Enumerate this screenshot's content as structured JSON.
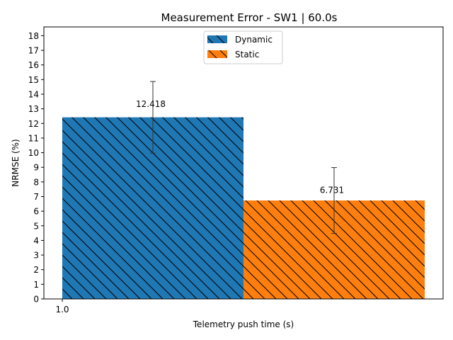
{
  "chart_data": {
    "type": "bar",
    "title": "Measurement Error - SW1 | 60.0s",
    "xlabel": "Telemetry push time (s)",
    "ylabel": "NRMSE (%)",
    "categories": [
      "1.0"
    ],
    "ylim": [
      0,
      18.6
    ],
    "yticks": [
      0,
      1,
      2,
      3,
      4,
      5,
      6,
      7,
      8,
      9,
      10,
      11,
      12,
      13,
      14,
      15,
      16,
      17,
      18
    ],
    "grid": false,
    "legend_position": "top-center",
    "series": [
      {
        "name": "Dynamic",
        "values": [
          12.418
        ],
        "error": [
          2.45
        ],
        "color": "#1f77b4",
        "label": "12.418"
      },
      {
        "name": "Static",
        "values": [
          6.731
        ],
        "error": [
          2.25
        ],
        "color": "#ff7f0e",
        "label": "6.731"
      }
    ]
  }
}
